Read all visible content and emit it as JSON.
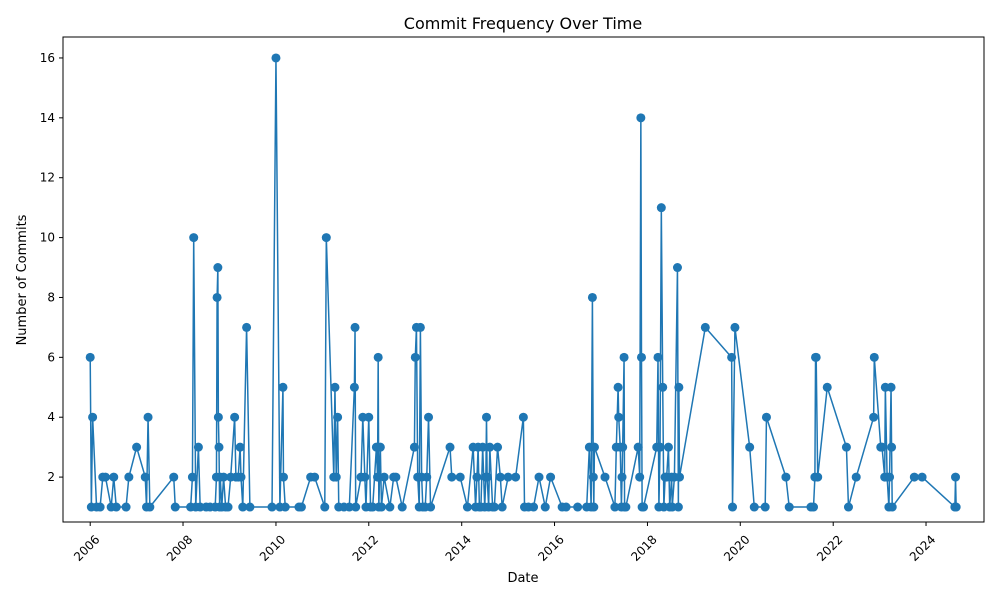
{
  "chart_data": {
    "type": "line",
    "title": "Commit Frequency Over Time",
    "xlabel": "Date",
    "ylabel": "Number of Commits",
    "xlim": [
      "2005-06-01",
      "2025-04-01"
    ],
    "ylim": [
      0.5,
      16.7
    ],
    "x_ticks": [
      "2006",
      "2008",
      "2010",
      "2012",
      "2014",
      "2016",
      "2018",
      "2020",
      "2022",
      "2024"
    ],
    "y_ticks": [
      2,
      4,
      6,
      8,
      10,
      12,
      14,
      16
    ],
    "grid": false,
    "legend": "none",
    "marker": "circle",
    "color": "#1f77b4",
    "series": [
      {
        "points": [
          [
            "2006-01-01",
            6
          ],
          [
            "2006-01-10",
            1
          ],
          [
            "2006-01-20",
            4
          ],
          [
            "2006-02-20",
            1
          ],
          [
            "2006-03-20",
            1
          ],
          [
            "2006-04-10",
            2
          ],
          [
            "2006-05-01",
            2
          ],
          [
            "2006-06-15",
            1
          ],
          [
            "2006-07-05",
            2
          ],
          [
            "2006-07-25",
            1
          ],
          [
            "2006-10-10",
            1
          ],
          [
            "2006-11-01",
            2
          ],
          [
            "2007-01-01",
            3
          ],
          [
            "2007-03-10",
            2
          ],
          [
            "2007-03-20",
            1
          ],
          [
            "2007-04-01",
            4
          ],
          [
            "2007-04-15",
            1
          ],
          [
            "2007-10-20",
            2
          ],
          [
            "2007-11-01",
            1
          ],
          [
            "2008-03-01",
            1
          ],
          [
            "2008-03-15",
            2
          ],
          [
            "2008-03-25",
            10
          ],
          [
            "2008-04-10",
            1
          ],
          [
            "2008-05-01",
            3
          ],
          [
            "2008-05-15",
            1
          ],
          [
            "2008-07-01",
            1
          ],
          [
            "2008-08-01",
            1
          ],
          [
            "2008-09-10",
            1
          ],
          [
            "2008-09-20",
            2
          ],
          [
            "2008-09-25",
            8
          ],
          [
            "2008-10-01",
            9
          ],
          [
            "2008-10-05",
            4
          ],
          [
            "2008-10-10",
            3
          ],
          [
            "2008-10-15",
            1
          ],
          [
            "2008-10-20",
            2
          ],
          [
            "2008-11-01",
            1
          ],
          [
            "2008-11-15",
            2
          ],
          [
            "2008-12-01",
            1
          ],
          [
            "2008-12-20",
            1
          ],
          [
            "2009-01-10",
            2
          ],
          [
            "2009-02-10",
            4
          ],
          [
            "2009-02-20",
            2
          ],
          [
            "2009-03-10",
            2
          ],
          [
            "2009-03-25",
            3
          ],
          [
            "2009-04-01",
            2
          ],
          [
            "2009-04-15",
            1
          ],
          [
            "2009-05-15",
            7
          ],
          [
            "2009-06-10",
            1
          ],
          [
            "2009-12-01",
            1
          ],
          [
            "2010-01-01",
            16
          ],
          [
            "2010-02-01",
            1
          ],
          [
            "2010-02-25",
            5
          ],
          [
            "2010-03-01",
            2
          ],
          [
            "2010-03-15",
            1
          ],
          [
            "2010-07-01",
            1
          ],
          [
            "2010-07-20",
            1
          ],
          [
            "2010-10-01",
            2
          ],
          [
            "2010-11-01",
            2
          ],
          [
            "2011-01-20",
            1
          ],
          [
            "2011-02-01",
            10
          ],
          [
            "2011-04-01",
            2
          ],
          [
            "2011-04-10",
            5
          ],
          [
            "2011-04-20",
            2
          ],
          [
            "2011-05-01",
            4
          ],
          [
            "2011-05-10",
            1
          ],
          [
            "2011-06-20",
            1
          ],
          [
            "2011-08-01",
            1
          ],
          [
            "2011-09-10",
            5
          ],
          [
            "2011-09-15",
            7
          ],
          [
            "2011-09-20",
            1
          ],
          [
            "2011-11-01",
            2
          ],
          [
            "2011-11-15",
            4
          ],
          [
            "2011-12-01",
            2
          ],
          [
            "2011-12-10",
            1
          ],
          [
            "2012-01-01",
            4
          ],
          [
            "2012-01-15",
            1
          ],
          [
            "2012-02-01",
            1
          ],
          [
            "2012-03-01",
            3
          ],
          [
            "2012-03-10",
            2
          ],
          [
            "2012-03-15",
            6
          ],
          [
            "2012-03-20",
            1
          ],
          [
            "2012-04-01",
            3
          ],
          [
            "2012-04-10",
            1
          ],
          [
            "2012-05-01",
            2
          ],
          [
            "2012-06-15",
            1
          ],
          [
            "2012-07-15",
            2
          ],
          [
            "2012-08-01",
            2
          ],
          [
            "2012-09-20",
            1
          ],
          [
            "2012-12-25",
            3
          ],
          [
            "2013-01-01",
            6
          ],
          [
            "2013-01-10",
            7
          ],
          [
            "2013-01-20",
            2
          ],
          [
            "2013-02-01",
            1
          ],
          [
            "2013-02-10",
            7
          ],
          [
            "2013-02-20",
            2
          ],
          [
            "2013-03-01",
            1
          ],
          [
            "2013-03-20",
            1
          ],
          [
            "2013-04-01",
            2
          ],
          [
            "2013-04-15",
            4
          ],
          [
            "2013-05-01",
            1
          ],
          [
            "2013-10-01",
            3
          ],
          [
            "2013-10-15",
            2
          ],
          [
            "2013-12-20",
            2
          ],
          [
            "2014-02-15",
            1
          ],
          [
            "2014-04-01",
            3
          ],
          [
            "2014-04-20",
            1
          ],
          [
            "2014-05-01",
            2
          ],
          [
            "2014-05-10",
            3
          ],
          [
            "2014-05-20",
            1
          ],
          [
            "2014-06-01",
            1
          ],
          [
            "2014-06-15",
            3
          ],
          [
            "2014-07-01",
            1
          ],
          [
            "2014-07-10",
            2
          ],
          [
            "2014-07-15",
            4
          ],
          [
            "2014-07-20",
            2
          ],
          [
            "2014-08-01",
            1
          ],
          [
            "2014-08-10",
            3
          ],
          [
            "2014-09-01",
            1
          ],
          [
            "2014-09-15",
            1
          ],
          [
            "2014-10-10",
            3
          ],
          [
            "2014-11-01",
            2
          ],
          [
            "2014-11-15",
            1
          ],
          [
            "2015-01-01",
            2
          ],
          [
            "2015-03-01",
            2
          ],
          [
            "2015-05-01",
            4
          ],
          [
            "2015-05-10",
            1
          ],
          [
            "2015-06-10",
            1
          ],
          [
            "2015-07-20",
            1
          ],
          [
            "2015-09-01",
            2
          ],
          [
            "2015-10-20",
            1
          ],
          [
            "2015-12-01",
            2
          ],
          [
            "2016-03-01",
            1
          ],
          [
            "2016-04-01",
            1
          ],
          [
            "2016-07-01",
            1
          ],
          [
            "2016-09-10",
            1
          ],
          [
            "2016-10-01",
            3
          ],
          [
            "2016-10-15",
            1
          ],
          [
            "2016-10-25",
            8
          ],
          [
            "2016-11-01",
            2
          ],
          [
            "2016-11-05",
            1
          ],
          [
            "2016-11-10",
            3
          ],
          [
            "2017-02-01",
            2
          ],
          [
            "2017-04-20",
            1
          ],
          [
            "2017-05-01",
            3
          ],
          [
            "2017-05-15",
            5
          ],
          [
            "2017-05-20",
            4
          ],
          [
            "2017-06-01",
            3
          ],
          [
            "2017-06-10",
            1
          ],
          [
            "2017-06-15",
            2
          ],
          [
            "2017-06-20",
            3
          ],
          [
            "2017-07-01",
            6
          ],
          [
            "2017-07-05",
            1
          ],
          [
            "2017-07-15",
            1
          ],
          [
            "2017-10-20",
            3
          ],
          [
            "2017-11-01",
            2
          ],
          [
            "2017-11-10",
            14
          ],
          [
            "2017-11-15",
            6
          ],
          [
            "2017-11-20",
            1
          ],
          [
            "2017-12-01",
            1
          ],
          [
            "2018-03-15",
            3
          ],
          [
            "2018-03-25",
            6
          ],
          [
            "2018-04-01",
            1
          ],
          [
            "2018-04-10",
            3
          ],
          [
            "2018-04-20",
            11
          ],
          [
            "2018-05-01",
            5
          ],
          [
            "2018-05-10",
            1
          ],
          [
            "2018-05-20",
            2
          ],
          [
            "2018-06-01",
            2
          ],
          [
            "2018-06-15",
            3
          ],
          [
            "2018-06-25",
            1
          ],
          [
            "2018-07-10",
            2
          ],
          [
            "2018-07-15",
            1
          ],
          [
            "2018-08-01",
            2
          ],
          [
            "2018-08-25",
            9
          ],
          [
            "2018-09-01",
            1
          ],
          [
            "2018-09-05",
            5
          ],
          [
            "2018-09-10",
            2
          ],
          [
            "2019-04-01",
            7
          ],
          [
            "2019-10-25",
            6
          ],
          [
            "2019-11-01",
            1
          ],
          [
            "2019-11-20",
            7
          ],
          [
            "2020-03-15",
            3
          ],
          [
            "2020-04-20",
            1
          ],
          [
            "2020-07-15",
            1
          ],
          [
            "2020-07-25",
            4
          ],
          [
            "2020-12-25",
            2
          ],
          [
            "2021-01-20",
            1
          ],
          [
            "2021-07-10",
            1
          ],
          [
            "2021-07-30",
            1
          ],
          [
            "2021-08-10",
            2
          ],
          [
            "2021-08-15",
            6
          ],
          [
            "2021-08-20",
            6
          ],
          [
            "2021-09-01",
            2
          ],
          [
            "2021-11-15",
            5
          ],
          [
            "2022-04-15",
            3
          ],
          [
            "2022-05-01",
            1
          ],
          [
            "2022-07-01",
            2
          ],
          [
            "2022-11-15",
            4
          ],
          [
            "2022-11-20",
            6
          ],
          [
            "2023-01-10",
            3
          ],
          [
            "2023-01-20",
            3
          ],
          [
            "2023-02-10",
            2
          ],
          [
            "2023-02-15",
            5
          ],
          [
            "2023-03-01",
            2
          ],
          [
            "2023-03-15",
            1
          ],
          [
            "2023-03-20",
            2
          ],
          [
            "2023-04-01",
            5
          ],
          [
            "2023-04-05",
            3
          ],
          [
            "2023-04-10",
            1
          ],
          [
            "2023-10-01",
            2
          ],
          [
            "2023-12-01",
            2
          ],
          [
            "2024-08-15",
            1
          ],
          [
            "2024-08-20",
            2
          ],
          [
            "2024-08-25",
            1
          ]
        ]
      }
    ]
  }
}
